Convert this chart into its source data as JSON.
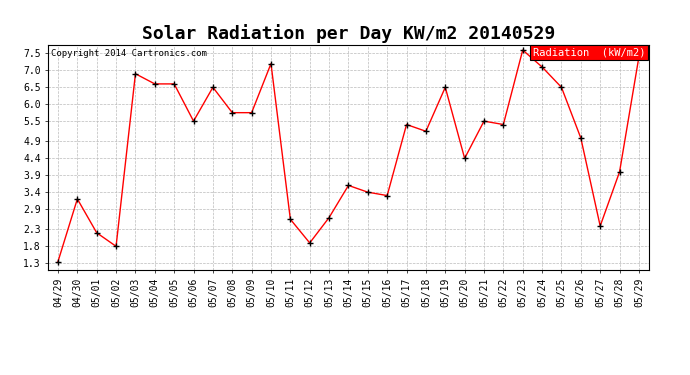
{
  "title": "Solar Radiation per Day KW/m2 20140529",
  "copyright_text": "Copyright 2014 Cartronics.com",
  "legend_label": "Radiation  (kW/m2)",
  "dates": [
    "04/29",
    "04/30",
    "05/01",
    "05/02",
    "05/03",
    "05/04",
    "05/05",
    "05/06",
    "05/07",
    "05/08",
    "05/09",
    "05/10",
    "05/11",
    "05/12",
    "05/13",
    "05/14",
    "05/15",
    "05/16",
    "05/17",
    "05/18",
    "05/19",
    "05/20",
    "05/21",
    "05/22",
    "05/23",
    "05/24",
    "05/25",
    "05/26",
    "05/27",
    "05/28",
    "05/29"
  ],
  "values": [
    1.35,
    3.2,
    2.2,
    1.8,
    6.9,
    6.6,
    6.6,
    5.5,
    6.5,
    5.75,
    5.75,
    7.2,
    2.6,
    1.9,
    2.65,
    3.6,
    3.4,
    3.3,
    5.4,
    5.2,
    6.5,
    4.4,
    5.5,
    5.4,
    7.6,
    7.1,
    6.5,
    5.0,
    2.4,
    4.0,
    7.4
  ],
  "yticks": [
    1.3,
    1.8,
    2.3,
    2.9,
    3.4,
    3.9,
    4.4,
    4.9,
    5.5,
    6.0,
    6.5,
    7.0,
    7.5
  ],
  "ylim": [
    1.1,
    7.75
  ],
  "line_color": "red",
  "marker_color": "black",
  "grid_color": "#bbbbbb",
  "background_color": "#ffffff",
  "title_fontsize": 13,
  "tick_fontsize": 7,
  "legend_bg": "red",
  "legend_text_color": "white"
}
